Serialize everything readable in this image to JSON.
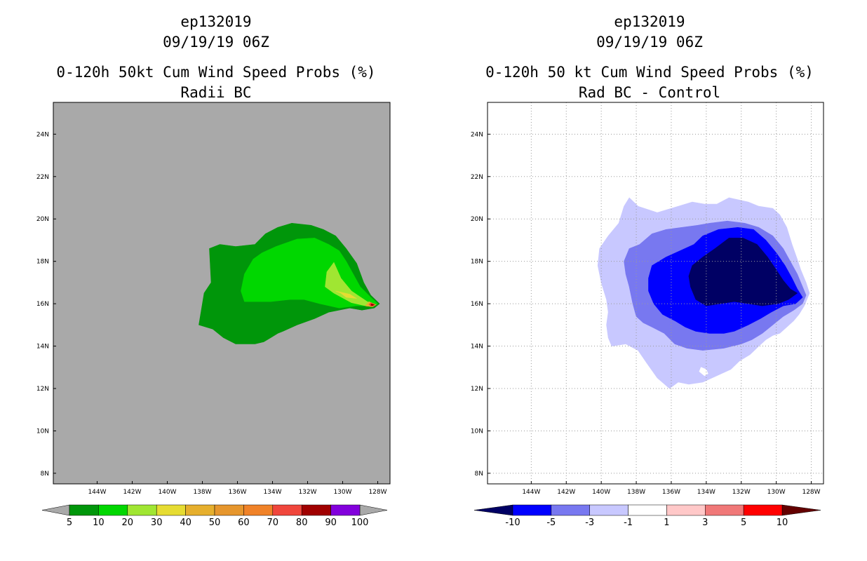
{
  "chart_data": [
    {
      "type": "contour",
      "header": {
        "storm_id": "ep132019",
        "datetime": "09/19/19 06Z"
      },
      "title": "0-120h 50kt Cum Wind Speed Probs (%)",
      "subtitle": "Radii BC",
      "x_ticks": [
        "144W",
        "142W",
        "140W",
        "138W",
        "136W",
        "134W",
        "132W",
        "130W",
        "128W"
      ],
      "y_ticks": [
        "24N",
        "22N",
        "20N",
        "18N",
        "16N",
        "14N",
        "12N",
        "10N",
        "8N"
      ],
      "xlim": [
        -146.5,
        -127.3
      ],
      "ylim": [
        7.5,
        25.5
      ],
      "grid": false,
      "background_color": "#a9a9a9",
      "contours": [
        {
          "level": 5,
          "color": "#00960a",
          "points": [
            [
              -138.2,
              15
            ],
            [
              -137.9,
              16.5
            ],
            [
              -137.5,
              17
            ],
            [
              -137.6,
              18.6
            ],
            [
              -137,
              18.8
            ],
            [
              -136.1,
              18.7
            ],
            [
              -135,
              18.8
            ],
            [
              -134.4,
              19.3
            ],
            [
              -133.7,
              19.6
            ],
            [
              -132.9,
              19.8
            ],
            [
              -131.8,
              19.7
            ],
            [
              -131.1,
              19.5
            ],
            [
              -130.4,
              19.2
            ],
            [
              -129.8,
              18.6
            ],
            [
              -129.2,
              17.9
            ],
            [
              -128.8,
              17
            ],
            [
              -128.4,
              16.4
            ],
            [
              -127.9,
              16
            ],
            [
              -128.2,
              15.8
            ],
            [
              -128.9,
              15.7
            ],
            [
              -129.6,
              15.8
            ],
            [
              -130.8,
              15.6
            ],
            [
              -131.6,
              15.3
            ],
            [
              -132.6,
              15
            ],
            [
              -133.4,
              14.7
            ],
            [
              -133.7,
              14.6
            ],
            [
              -134.1,
              14.4
            ],
            [
              -134.5,
              14.2
            ],
            [
              -135,
              14.1
            ],
            [
              -136.1,
              14.1
            ],
            [
              -136.8,
              14.4
            ],
            [
              -137.4,
              14.8
            ]
          ]
        },
        {
          "level": 10,
          "color": "#00d700",
          "points": [
            [
              -135.6,
              16.1
            ],
            [
              -135,
              16.1
            ],
            [
              -134.1,
              16.1
            ],
            [
              -133,
              16.2
            ],
            [
              -132.2,
              16.2
            ],
            [
              -131.3,
              16
            ],
            [
              -130.2,
              15.8
            ],
            [
              -129.2,
              15.9
            ],
            [
              -128.2,
              15.9
            ],
            [
              -128,
              16
            ],
            [
              -128.4,
              16.3
            ],
            [
              -129,
              16.8
            ],
            [
              -129.4,
              17.4
            ],
            [
              -129.8,
              18
            ],
            [
              -130.2,
              18.5
            ],
            [
              -130.8,
              18.8
            ],
            [
              -131.6,
              19.1
            ],
            [
              -132.6,
              19.05
            ],
            [
              -133.8,
              18.7
            ],
            [
              -134.6,
              18.4
            ],
            [
              -135.1,
              18.1
            ],
            [
              -135.6,
              17.4
            ],
            [
              -135.8,
              16.6
            ]
          ]
        },
        {
          "level": 20,
          "color": "#a0e632",
          "points": [
            [
              -130.5,
              17.95
            ],
            [
              -130.1,
              17.2
            ],
            [
              -129.5,
              16.6
            ],
            [
              -128.6,
              16.1
            ],
            [
              -128.1,
              15.95
            ],
            [
              -128.6,
              15.88
            ],
            [
              -129.5,
              16.05
            ],
            [
              -130.5,
              16.5
            ],
            [
              -131,
              16.8
            ],
            [
              -130.9,
              17.5
            ]
          ]
        },
        {
          "level": 30,
          "color": "#e6dc32",
          "points": [
            [
              -130.4,
              16.6
            ],
            [
              -129.6,
              16.45
            ],
            [
              -129.2,
              16.25
            ],
            [
              -129.8,
              16.3
            ],
            [
              -130.1,
              16.5
            ]
          ]
        },
        {
          "level": 40,
          "color": "#e6af2d",
          "points": [
            [
              -128.5,
              16.1
            ],
            [
              -128.1,
              15.95
            ],
            [
              -128.3,
              15.85
            ],
            [
              -128.7,
              15.9
            ]
          ]
        },
        {
          "level": 70,
          "color": "#f0463c",
          "points": [
            [
              -128.4,
              16.05
            ],
            [
              -128.15,
              15.95
            ],
            [
              -128.35,
              15.88
            ],
            [
              -128.5,
              15.95
            ]
          ]
        },
        {
          "level": 80,
          "color": "#a00000",
          "points": [
            [
              -128.35,
              16
            ],
            [
              -128.2,
              15.95
            ],
            [
              -128.3,
              15.9
            ],
            [
              -128.4,
              15.93
            ]
          ]
        }
      ],
      "colorbar": {
        "labels": [
          "5",
          "10",
          "20",
          "30",
          "40",
          "50",
          "60",
          "70",
          "80",
          "90",
          "100"
        ],
        "colors": [
          "#00960a",
          "#00d700",
          "#a0e632",
          "#e6dc32",
          "#e6af2d",
          "#e6962d",
          "#f08228",
          "#f0463c",
          "#a00000",
          "#8200dc"
        ],
        "lower_extend_color": "#a9a9a9",
        "upper_extend_color": "#a9a9a9"
      }
    },
    {
      "type": "contour",
      "header": {
        "storm_id": "ep132019",
        "datetime": "09/19/19 06Z"
      },
      "title": "0-120h 50 kt Cum Wind Speed Probs (%)",
      "subtitle": "Rad BC - Control",
      "x_ticks": [
        "144W",
        "142W",
        "140W",
        "138W",
        "136W",
        "134W",
        "132W",
        "130W",
        "128W"
      ],
      "y_ticks": [
        "24N",
        "22N",
        "20N",
        "18N",
        "16N",
        "14N",
        "12N",
        "10N",
        "8N"
      ],
      "xlim": [
        -146.5,
        -127.3
      ],
      "ylim": [
        7.5,
        25.5
      ],
      "grid": true,
      "background_color": "#ffffff",
      "contours": [
        {
          "level": -1,
          "color": "#c8c8ff",
          "points": [
            [
              -138.4,
              21
            ],
            [
              -137.9,
              20.6
            ],
            [
              -136.8,
              20.3
            ],
            [
              -135.6,
              20.6
            ],
            [
              -134.8,
              20.8
            ],
            [
              -134.1,
              20.7
            ],
            [
              -133.4,
              20.7
            ],
            [
              -132.7,
              21.0
            ],
            [
              -131.6,
              20.8
            ],
            [
              -131,
              20.6
            ],
            [
              -130.2,
              20.5
            ],
            [
              -129.8,
              20.2
            ],
            [
              -129.4,
              19.6
            ],
            [
              -129.1,
              18.8
            ],
            [
              -128.8,
              18.1
            ],
            [
              -128.6,
              17.6
            ],
            [
              -128.3,
              17
            ],
            [
              -128.1,
              16.5
            ],
            [
              -128.4,
              15.9
            ],
            [
              -128.7,
              15.5
            ],
            [
              -129,
              15.2
            ],
            [
              -129.4,
              14.9
            ],
            [
              -129.8,
              14.6
            ],
            [
              -130.2,
              14.5
            ],
            [
              -130.6,
              14.3
            ],
            [
              -131,
              14
            ],
            [
              -131.5,
              13.6
            ],
            [
              -132.1,
              13.3
            ],
            [
              -132.6,
              12.9
            ],
            [
              -133.4,
              12.6
            ],
            [
              -134.2,
              12.3
            ],
            [
              -135,
              12.2
            ],
            [
              -135.6,
              12.3
            ],
            [
              -136.1,
              12
            ],
            [
              -136.8,
              12.5
            ],
            [
              -137.4,
              13.2
            ],
            [
              -137.9,
              13.8
            ],
            [
              -138.6,
              14.1
            ],
            [
              -139.4,
              14
            ],
            [
              -139.6,
              14.4
            ],
            [
              -139.7,
              15
            ],
            [
              -139.6,
              15.6
            ],
            [
              -139.7,
              16.2
            ],
            [
              -140,
              17
            ],
            [
              -140.2,
              17.8
            ],
            [
              -140.1,
              18.6
            ],
            [
              -139.6,
              19.2
            ],
            [
              -139,
              19.8
            ],
            [
              -138.7,
              20.6
            ]
          ]
        },
        {
          "level": -3,
          "color": "#7878f0",
          "points": [
            [
              -138.4,
              18.6
            ],
            [
              -137.8,
              18.8
            ],
            [
              -137.1,
              19.3
            ],
            [
              -136.3,
              19.5
            ],
            [
              -135.4,
              19.6
            ],
            [
              -134.5,
              19.7
            ],
            [
              -133.8,
              19.8
            ],
            [
              -132.8,
              19.9
            ],
            [
              -131.8,
              19.8
            ],
            [
              -131,
              19.6
            ],
            [
              -130.2,
              19.2
            ],
            [
              -129.6,
              18.6
            ],
            [
              -129.2,
              18
            ],
            [
              -128.8,
              17.4
            ],
            [
              -128.5,
              16.8
            ],
            [
              -128.3,
              16.4
            ],
            [
              -128.5,
              16
            ],
            [
              -129,
              15.7
            ],
            [
              -129.6,
              15.4
            ],
            [
              -130.2,
              15
            ],
            [
              -130.8,
              14.6
            ],
            [
              -131.4,
              14.3
            ],
            [
              -132,
              14.1
            ],
            [
              -133,
              13.9
            ],
            [
              -134.2,
              13.8
            ],
            [
              -135.1,
              13.9
            ],
            [
              -135.8,
              14.1
            ],
            [
              -136.4,
              14.6
            ],
            [
              -137.1,
              14.9
            ],
            [
              -137.6,
              15.1
            ],
            [
              -138,
              15.4
            ],
            [
              -138.2,
              16
            ],
            [
              -138.4,
              16.8
            ],
            [
              -138.6,
              17.4
            ],
            [
              -138.7,
              18
            ]
          ]
        },
        {
          "level": -5,
          "color": "#0000ff",
          "points": [
            [
              -137.1,
              17.8
            ],
            [
              -136.3,
              18.2
            ],
            [
              -135.5,
              18.5
            ],
            [
              -134.7,
              18.8
            ],
            [
              -134.2,
              19.2
            ],
            [
              -133.3,
              19.5
            ],
            [
              -132.2,
              19.6
            ],
            [
              -131.3,
              19.5
            ],
            [
              -130.6,
              19
            ],
            [
              -130,
              18.4
            ],
            [
              -129.5,
              17.8
            ],
            [
              -129.1,
              17.2
            ],
            [
              -128.8,
              16.7
            ],
            [
              -128.5,
              16.3
            ],
            [
              -128.9,
              16
            ],
            [
              -129.6,
              15.9
            ],
            [
              -130.3,
              15.6
            ],
            [
              -130.9,
              15.3
            ],
            [
              -131.6,
              15
            ],
            [
              -132.4,
              14.7
            ],
            [
              -133,
              14.6
            ],
            [
              -133.8,
              14.6
            ],
            [
              -134.6,
              14.7
            ],
            [
              -135.2,
              14.9
            ],
            [
              -135.8,
              15.2
            ],
            [
              -136.5,
              15.5
            ],
            [
              -137,
              16
            ],
            [
              -137.3,
              16.6
            ],
            [
              -137.3,
              17.2
            ]
          ]
        },
        {
          "level": -10,
          "color": "#000064",
          "points": [
            [
              -134.8,
              17.8
            ],
            [
              -134.2,
              18.2
            ],
            [
              -133.5,
              18.6
            ],
            [
              -132.7,
              19.1
            ],
            [
              -131.9,
              19.1
            ],
            [
              -131.1,
              18.8
            ],
            [
              -130.5,
              18.2
            ],
            [
              -130,
              17.6
            ],
            [
              -129.6,
              17.1
            ],
            [
              -129.2,
              16.7
            ],
            [
              -128.8,
              16.5
            ],
            [
              -129.3,
              16.2
            ],
            [
              -129.9,
              16
            ],
            [
              -130.8,
              15.9
            ],
            [
              -131.6,
              16
            ],
            [
              -132.4,
              16.1
            ],
            [
              -133.2,
              16
            ],
            [
              -134,
              15.9
            ],
            [
              -134.6,
              16.2
            ],
            [
              -134.9,
              16.8
            ],
            [
              -135,
              17.3
            ]
          ]
        },
        {
          "level": -1,
          "color": "#ffffff",
          "points": [
            [
              -134.3,
              13
            ],
            [
              -134,
              12.9
            ],
            [
              -133.9,
              12.7
            ],
            [
              -134.1,
              12.6
            ],
            [
              -134.4,
              12.8
            ]
          ]
        }
      ],
      "colorbar": {
        "labels": [
          "-10",
          "-5",
          "-3",
          "-1",
          "1",
          "3",
          "5",
          "10"
        ],
        "colors": [
          "#0000ff",
          "#7878f0",
          "#c8c8ff",
          "#ffffff",
          "#ffc8c8",
          "#f07878",
          "#ff0000"
        ],
        "lower_extend_color": "#000064",
        "upper_extend_color": "#640000"
      }
    }
  ]
}
